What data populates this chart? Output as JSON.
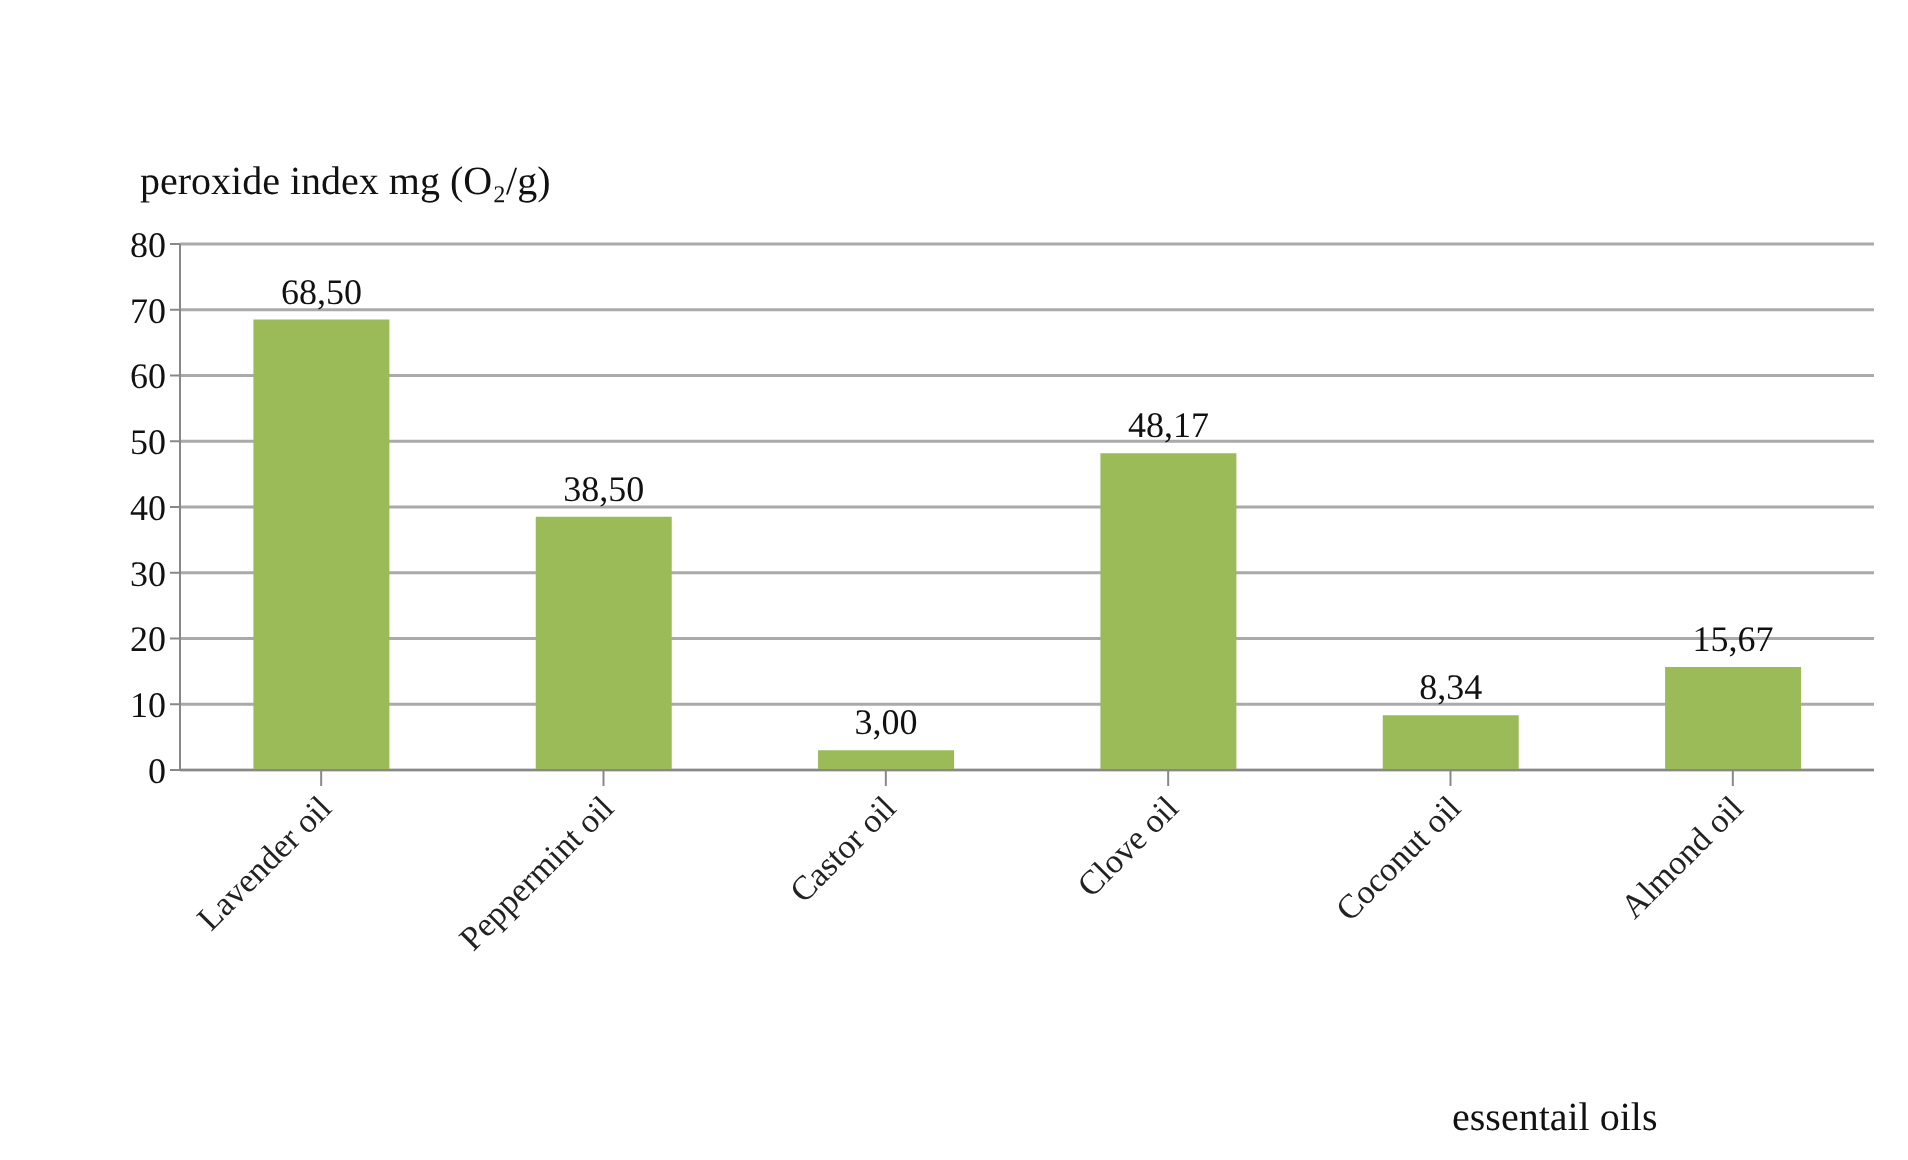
{
  "chart_data": {
    "type": "bar",
    "ylabel": "peroxide index mg (O₂/g)",
    "xlabel": "essentail oils",
    "categories": [
      "Lavender oil",
      "Peppermint oil",
      "Castor oil",
      "Clove oil",
      "Coconut oil",
      "Almond oil"
    ],
    "values": [
      68.5,
      38.5,
      3,
      48.17,
      8.34,
      15.67
    ],
    "value_labels": [
      "68,50",
      "38,50",
      "3,00",
      "48,17",
      "8,34",
      "15,67"
    ],
    "color": "#9bbb59",
    "ylim": [
      0,
      80
    ],
    "yticks": [
      0,
      10,
      20,
      30,
      40,
      50,
      60,
      70,
      80
    ],
    "grid": "y",
    "legend": false
  }
}
